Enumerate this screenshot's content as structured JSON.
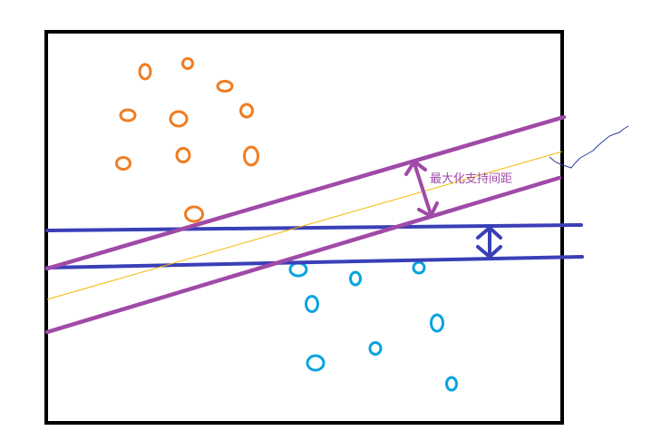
{
  "annotation": {
    "text": "最大化支持间距",
    "color": "#a04aa8"
  },
  "colors": {
    "frame": "#000000",
    "class_a": "#f07d22",
    "class_b": "#0aa3df",
    "margin_lines": "#a04aa8",
    "decision_line": "#f5b800",
    "other_lines": "#3a3fb8",
    "scribble": "#2a3d9a"
  }
}
